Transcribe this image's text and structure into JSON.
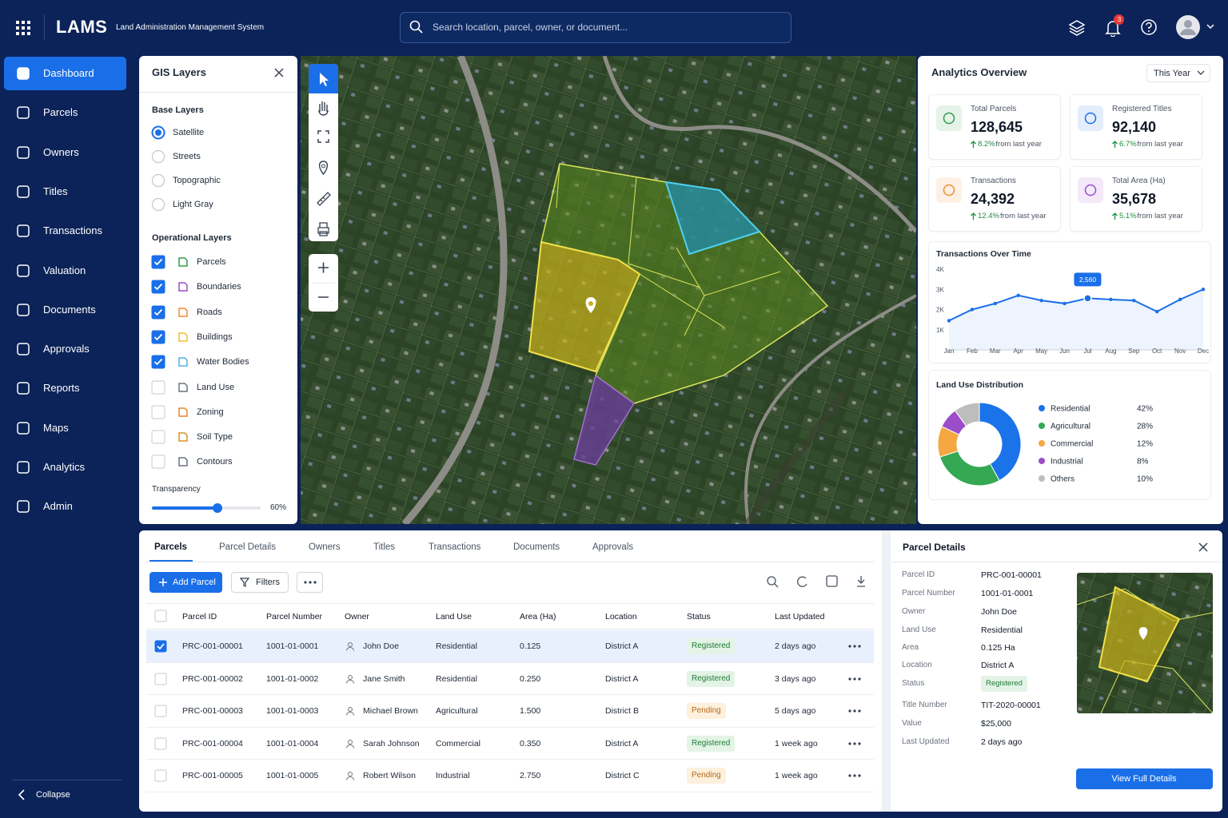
{
  "header": {
    "app_name": "LAMS",
    "app_subtitle": "Land Administration Management System",
    "search_placeholder": "Search location, parcel, owner, or document...",
    "notification_count": 3
  },
  "sidebar": {
    "items": [
      "Dashboard",
      "Parcels",
      "Owners",
      "Titles",
      "Transactions",
      "Valuation",
      "Documents",
      "Approvals",
      "Reports",
      "Maps",
      "Analytics",
      "Admin"
    ],
    "active_index": 0,
    "collapse_label": "Collapse"
  },
  "gis_layers": {
    "title": "GIS Layers",
    "base_layers_title": "Base Layers",
    "base_layers": [
      {
        "label": "Satellite",
        "selected": true
      },
      {
        "label": "Streets",
        "selected": false
      },
      {
        "label": "Topographic",
        "selected": false
      },
      {
        "label": "Light Gray",
        "selected": false
      }
    ],
    "operational_layers_title": "Operational Layers",
    "operational_layers": [
      {
        "label": "Parcels",
        "checked": true,
        "color": "#2e9e4a"
      },
      {
        "label": "Boundaries",
        "checked": true,
        "color": "#9b4dca"
      },
      {
        "label": "Roads",
        "checked": true,
        "color": "#f08c2e"
      },
      {
        "label": "Buildings",
        "checked": true,
        "color": "#f2c12e"
      },
      {
        "label": "Water Bodies",
        "checked": true,
        "color": "#4fb3e8"
      },
      {
        "label": "Land Use",
        "checked": false,
        "color": "#6b7280"
      },
      {
        "label": "Zoning",
        "checked": false,
        "color": "#e0892b"
      },
      {
        "label": "Soil Type",
        "checked": false,
        "color": "#d9902a"
      },
      {
        "label": "Contours",
        "checked": false,
        "color": "#6b7280"
      }
    ],
    "transparency_label": "Transparency",
    "transparency_value": "60%"
  },
  "analytics": {
    "title": "Analytics Overview",
    "period": "This Year",
    "kpis": [
      {
        "label": "Total Parcels",
        "value": "128,645",
        "change": "8.2%",
        "change_note": "from last year",
        "color": "#2e9e4a"
      },
      {
        "label": "Registered Titles",
        "value": "92,140",
        "change": "6.7%",
        "change_note": "from last year",
        "color": "#1a6fe8"
      },
      {
        "label": "Transactions",
        "value": "24,392",
        "change": "12.4%",
        "change_note": "from last year",
        "color": "#f08c2e"
      },
      {
        "label": "Total Area (Ha)",
        "value": "35,678",
        "change": "5.1%",
        "change_note": "from last year",
        "color": "#9b4dca"
      }
    ]
  },
  "chart_data": [
    {
      "type": "line",
      "title": "Transactions Over Time",
      "categories": [
        "Jan",
        "Feb",
        "Mar",
        "Apr",
        "May",
        "Jun",
        "Jul",
        "Aug",
        "Sep",
        "Oct",
        "Nov",
        "Dec"
      ],
      "values": [
        1450,
        2000,
        2300,
        2700,
        2450,
        2300,
        2560,
        2500,
        2450,
        1900,
        2500,
        3000
      ],
      "value_labels": [
        null,
        null,
        null,
        null,
        null,
        null,
        "2,560",
        null,
        null,
        null,
        null,
        null
      ],
      "ylim": [
        0,
        4000
      ],
      "yticks": [
        {
          "value": 1000,
          "label": "1K"
        },
        {
          "value": 2000,
          "label": "2K"
        },
        {
          "value": 3000,
          "label": "3K"
        },
        {
          "value": 4000,
          "label": "4K"
        }
      ],
      "color": "#1a6fe8"
    },
    {
      "type": "pie",
      "title": "Land Use Distribution",
      "categories": [
        "Residential",
        "Agricultural",
        "Commercial",
        "Industrial",
        "Others"
      ],
      "values": [
        42,
        28,
        12,
        8,
        10
      ],
      "value_labels": [
        "42%",
        "28%",
        "12%",
        "8%",
        "10%"
      ],
      "colors": [
        "#1a73e8",
        "#34a853",
        "#f5a742",
        "#9b4dca",
        "#bdbdbd"
      ]
    }
  ],
  "parcels_table": {
    "tabs": [
      "Parcels",
      "Parcel Details",
      "Owners",
      "Titles",
      "Transactions",
      "Documents",
      "Approvals"
    ],
    "active_tab_index": 0,
    "add_button": "Add Parcel",
    "filters_button": "Filters",
    "columns": [
      "Parcel ID",
      "Parcel Number",
      "Owner",
      "Land Use",
      "Area (Ha)",
      "Location",
      "Status",
      "Last Updated"
    ],
    "rows": [
      {
        "cells": [
          "PRC-001-00001",
          "1001-01-0001",
          "John Doe",
          "Residential",
          "0.125",
          "District A",
          "Registered",
          "2 days ago"
        ],
        "status_tone": "green",
        "selected": true
      },
      {
        "cells": [
          "PRC-001-00002",
          "1001-01-0002",
          "Jane Smith",
          "Residential",
          "0.250",
          "District A",
          "Registered",
          "3 days ago"
        ],
        "status_tone": "green",
        "selected": false
      },
      {
        "cells": [
          "PRC-001-00003",
          "1001-01-0003",
          "Michael Brown",
          "Agricultural",
          "1.500",
          "District B",
          "Pending",
          "5 days ago"
        ],
        "status_tone": "orange",
        "selected": false
      },
      {
        "cells": [
          "PRC-001-00004",
          "1001-01-0004",
          "Sarah Johnson",
          "Commercial",
          "0.350",
          "District A",
          "Registered",
          "1 week ago"
        ],
        "status_tone": "green",
        "selected": false
      },
      {
        "cells": [
          "PRC-001-00005",
          "1001-01-0005",
          "Robert Wilson",
          "Industrial",
          "2.750",
          "District C",
          "Pending",
          "1 week ago"
        ],
        "status_tone": "orange",
        "selected": false
      }
    ]
  },
  "parcel_details": {
    "title": "Parcel Details",
    "fields": [
      {
        "label": "Parcel ID",
        "value": "PRC-001-00001"
      },
      {
        "label": "Parcel Number",
        "value": "1001-01-0001"
      },
      {
        "label": "Owner",
        "value": "John Doe"
      },
      {
        "label": "Land Use",
        "value": "Residential"
      },
      {
        "label": "Area",
        "value": "0.125 Ha"
      },
      {
        "label": "Location",
        "value": "District A"
      },
      {
        "label": "Status",
        "value": "Registered",
        "badge": true
      },
      {
        "label": "Title Number",
        "value": "TIT-2020-00001"
      },
      {
        "label": "Value",
        "value": "$25,000"
      },
      {
        "label": "Last Updated",
        "value": "2 days ago"
      }
    ],
    "button": "View Full Details"
  }
}
